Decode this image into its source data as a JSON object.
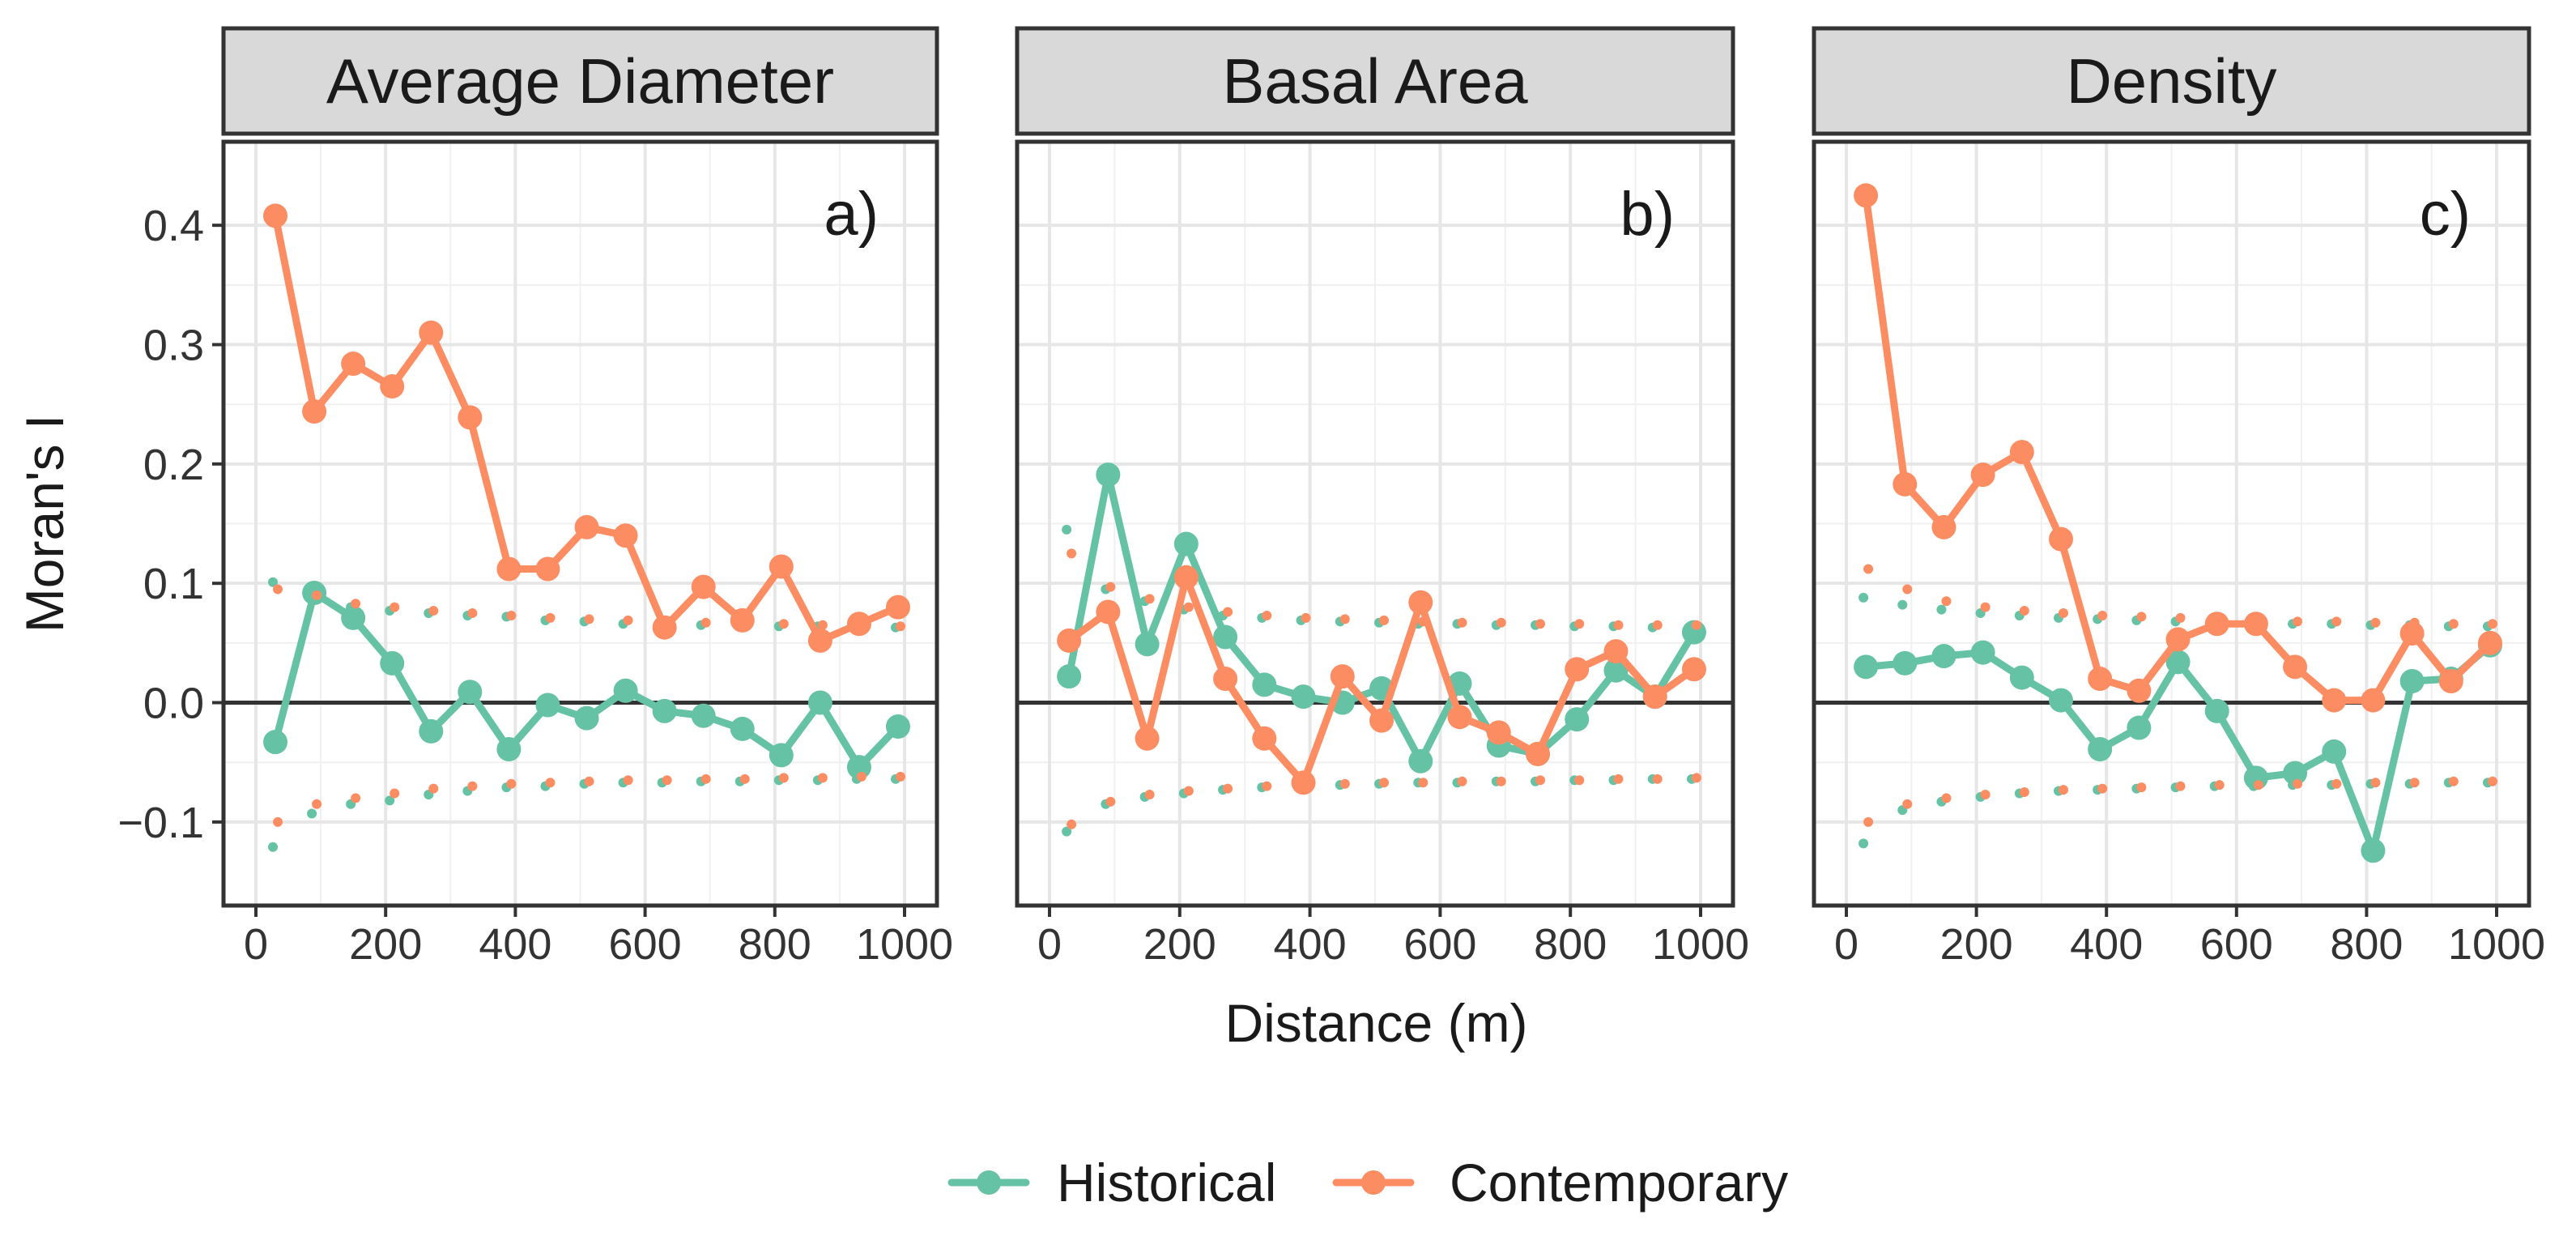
{
  "chart_data": {
    "type": "line",
    "layout": "three facet panels sharing y axis",
    "xlabel": "Distance (m)",
    "ylabel": "Moran's I",
    "xlim": [
      0,
      1000
    ],
    "ylim": [
      -0.17,
      0.47
    ],
    "xticks": [
      0,
      200,
      400,
      600,
      800,
      1000
    ],
    "yticks": [
      -0.1,
      0.0,
      0.1,
      0.2,
      0.3,
      0.4
    ],
    "grid": true,
    "reference_line_y": 0,
    "legend_position": "bottom",
    "colors": {
      "Historical": "#66c2a5",
      "Contemporary": "#fc8d62"
    },
    "legend": [
      "Historical",
      "Contemporary"
    ],
    "x": [
      30,
      90,
      150,
      210,
      270,
      330,
      390,
      450,
      510,
      570,
      630,
      690,
      750,
      810,
      870,
      930,
      990
    ],
    "panels": [
      {
        "title": "Average Diameter",
        "tag": "a)",
        "series": [
          {
            "name": "Historical",
            "values": [
              -0.033,
              0.092,
              0.071,
              0.033,
              -0.024,
              0.009,
              -0.039,
              -0.002,
              -0.013,
              0.01,
              -0.007,
              -0.011,
              -0.022,
              -0.044,
              0.0,
              -0.054,
              -0.02
            ],
            "envelope_upper": [
              0.101,
              0.087,
              0.08,
              0.077,
              0.075,
              0.073,
              0.072,
              0.069,
              0.068,
              0.066,
              0.066,
              0.065,
              0.065,
              0.064,
              0.064,
              0.063,
              0.063
            ],
            "envelope_lower": [
              -0.121,
              -0.093,
              -0.085,
              -0.082,
              -0.077,
              -0.074,
              -0.071,
              -0.07,
              -0.068,
              -0.067,
              -0.067,
              -0.066,
              -0.066,
              -0.065,
              -0.065,
              -0.064,
              -0.064
            ]
          },
          {
            "name": "Contemporary",
            "values": [
              0.408,
              0.244,
              0.284,
              0.265,
              0.31,
              0.239,
              0.112,
              0.112,
              0.147,
              0.14,
              0.063,
              0.097,
              0.069,
              0.114,
              0.052,
              0.066,
              0.08
            ],
            "envelope_upper": [
              0.095,
              0.09,
              0.083,
              0.08,
              0.077,
              0.075,
              0.073,
              0.071,
              0.07,
              0.069,
              0.068,
              0.067,
              0.066,
              0.066,
              0.065,
              0.065,
              0.064
            ],
            "envelope_lower": [
              -0.1,
              -0.085,
              -0.08,
              -0.076,
              -0.072,
              -0.07,
              -0.068,
              -0.067,
              -0.066,
              -0.065,
              -0.065,
              -0.064,
              -0.064,
              -0.063,
              -0.063,
              -0.062,
              -0.062
            ]
          }
        ]
      },
      {
        "title": "Basal Area",
        "tag": "b)",
        "series": [
          {
            "name": "Historical",
            "values": [
              0.022,
              0.191,
              0.049,
              0.133,
              0.055,
              0.015,
              0.005,
              0.0,
              0.012,
              -0.049,
              0.016,
              -0.036,
              -0.043,
              -0.014,
              0.027,
              0.005,
              0.059
            ],
            "envelope_upper": [
              0.145,
              0.095,
              0.085,
              0.078,
              0.073,
              0.071,
              0.069,
              0.068,
              0.067,
              0.066,
              0.066,
              0.065,
              0.065,
              0.064,
              0.064,
              0.063,
              0.063
            ],
            "envelope_lower": [
              -0.108,
              -0.085,
              -0.079,
              -0.076,
              -0.073,
              -0.071,
              -0.07,
              -0.069,
              -0.068,
              -0.067,
              -0.067,
              -0.066,
              -0.066,
              -0.065,
              -0.065,
              -0.064,
              -0.064
            ]
          },
          {
            "name": "Contemporary",
            "values": [
              0.052,
              0.076,
              -0.03,
              0.105,
              0.02,
              -0.03,
              -0.067,
              0.022,
              -0.015,
              0.084,
              -0.012,
              -0.025,
              -0.043,
              0.028,
              0.043,
              0.005,
              0.028
            ],
            "envelope_upper": [
              0.125,
              0.097,
              0.087,
              0.08,
              0.076,
              0.073,
              0.071,
              0.07,
              0.069,
              0.068,
              0.067,
              0.067,
              0.066,
              0.066,
              0.065,
              0.065,
              0.065
            ],
            "envelope_lower": [
              -0.102,
              -0.083,
              -0.077,
              -0.074,
              -0.072,
              -0.07,
              -0.069,
              -0.068,
              -0.067,
              -0.067,
              -0.066,
              -0.066,
              -0.065,
              -0.065,
              -0.064,
              -0.064,
              -0.063
            ]
          }
        ]
      },
      {
        "title": "Density",
        "tag": "c)",
        "series": [
          {
            "name": "Historical",
            "values": [
              0.03,
              0.033,
              0.039,
              0.042,
              0.021,
              0.002,
              -0.039,
              -0.021,
              0.034,
              -0.007,
              -0.063,
              -0.059,
              -0.041,
              -0.124,
              0.018,
              0.02,
              0.048
            ],
            "envelope_upper": [
              0.088,
              0.082,
              0.078,
              0.075,
              0.073,
              0.071,
              0.07,
              0.069,
              0.068,
              0.067,
              0.067,
              0.066,
              0.066,
              0.065,
              0.065,
              0.064,
              0.064
            ],
            "envelope_lower": [
              -0.118,
              -0.09,
              -0.083,
              -0.079,
              -0.076,
              -0.074,
              -0.073,
              -0.072,
              -0.071,
              -0.07,
              -0.07,
              -0.069,
              -0.069,
              -0.068,
              -0.068,
              -0.067,
              -0.067
            ]
          },
          {
            "name": "Contemporary",
            "values": [
              0.425,
              0.183,
              0.147,
              0.191,
              0.21,
              0.137,
              0.02,
              0.01,
              0.053,
              0.066,
              0.066,
              0.03,
              0.002,
              0.002,
              0.058,
              0.018,
              0.05
            ],
            "envelope_upper": [
              0.112,
              0.095,
              0.085,
              0.08,
              0.077,
              0.075,
              0.073,
              0.072,
              0.071,
              0.07,
              0.069,
              0.068,
              0.068,
              0.067,
              0.067,
              0.066,
              0.066
            ],
            "envelope_lower": [
              -0.1,
              -0.085,
              -0.08,
              -0.077,
              -0.075,
              -0.073,
              -0.072,
              -0.071,
              -0.07,
              -0.069,
              -0.069,
              -0.068,
              -0.068,
              -0.067,
              -0.067,
              -0.066,
              -0.066
            ]
          }
        ]
      }
    ]
  }
}
